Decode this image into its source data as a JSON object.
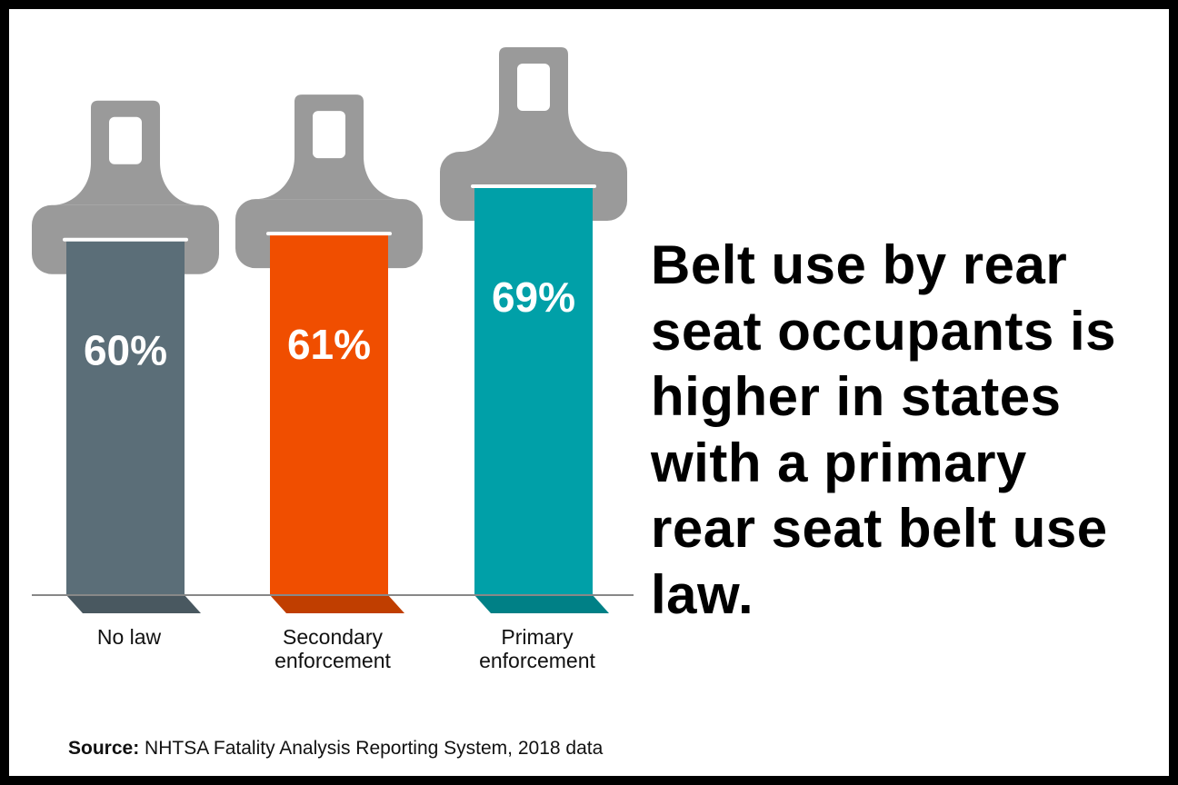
{
  "chart_data": {
    "type": "bar",
    "title": "Belt use by rear seat occupants is higher in states with a primary rear seat belt use law.",
    "categories": [
      "No law",
      "Secondary enforcement",
      "Primary enforcement"
    ],
    "values": [
      60,
      61,
      69
    ],
    "value_labels": [
      "60%",
      "61%",
      "69%"
    ],
    "colors": [
      "#5b6e78",
      "#f04e00",
      "#00a0a8"
    ],
    "source_label": "Source:",
    "source": "NHTSA Fatality Analysis Reporting System, 2018 data"
  }
}
